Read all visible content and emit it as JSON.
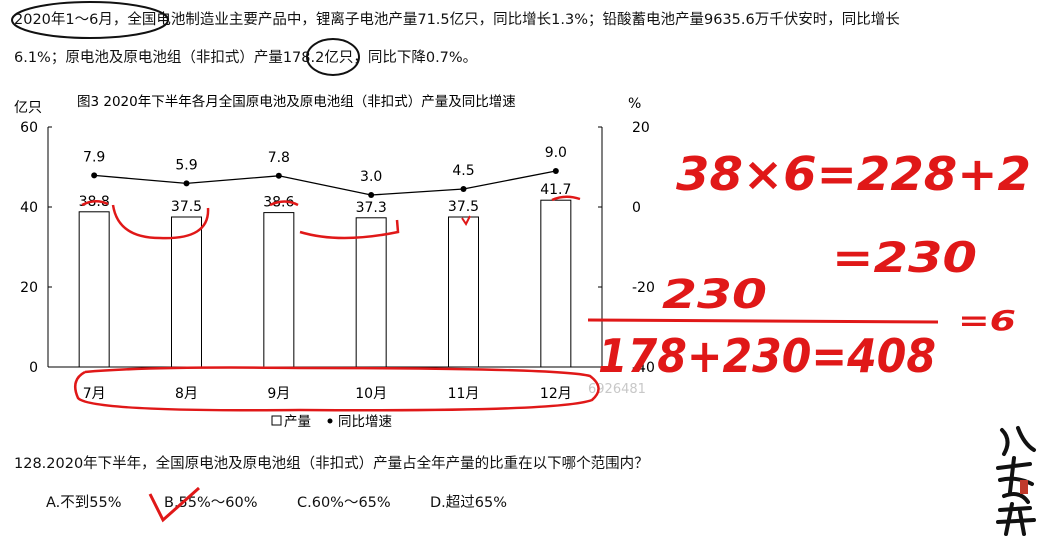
{
  "passage": {
    "line1": "2020年1～6月，全国电池制造业主要产品中，锂离子电池产量71.5亿只，同比增长1.3%；铅酸蓄电池产量9635.6万千伏安时，同比增长",
    "line2": "6.1%；原电池及原电池组（非扣式）产量178.2亿只，同比下降0.7%。"
  },
  "chart_data": {
    "type": "bar+line",
    "title": "图3  2020年下半年各月全国原电池及原电池组（非扣式）产量及同比增速",
    "ylabel_left": "亿只",
    "ylabel_right": "%",
    "categories": [
      "7月",
      "8月",
      "9月",
      "10月",
      "11月",
      "12月"
    ],
    "ylim_left": [
      0,
      60
    ],
    "yticks_left": [
      0,
      20,
      40,
      60
    ],
    "ylim_right": [
      -40,
      20
    ],
    "yticks_right": [
      -40,
      -20,
      0,
      20
    ],
    "series": [
      {
        "name": "产量",
        "kind": "bar",
        "axis": "left",
        "values": [
          38.8,
          37.5,
          38.6,
          37.3,
          37.5,
          41.7
        ],
        "labels": [
          "38.8",
          "37.5",
          "38.6",
          "37.3",
          "37.5",
          "41.7"
        ]
      },
      {
        "name": "同比增速",
        "kind": "line",
        "axis": "right",
        "values": [
          7.9,
          5.9,
          7.8,
          3.0,
          4.5,
          9.0
        ],
        "labels": [
          "7.9",
          "5.9",
          "7.8",
          "3.0",
          "4.5",
          "9.0"
        ]
      }
    ],
    "grid": false,
    "legend": "bottom-center"
  },
  "watermark": "6926481",
  "question": {
    "stem": "128.2020年下半年，全国原电池及原电池组（非扣式）产量占全年产量的比重在以下哪个范围内？",
    "options": [
      "A.不到55%",
      "B.55%～60%",
      "C.60%～65%",
      "D.超过65%"
    ]
  },
  "annotations": {
    "line1": "38×6=228+2",
    "line2": "=230",
    "line3": "230",
    "line4": "178+230=408",
    "line5": "=6"
  },
  "colors": {
    "ink": "#e01818",
    "circle": "#111111",
    "bar_edge": "#000000",
    "bar_fill": "#ffffff"
  }
}
